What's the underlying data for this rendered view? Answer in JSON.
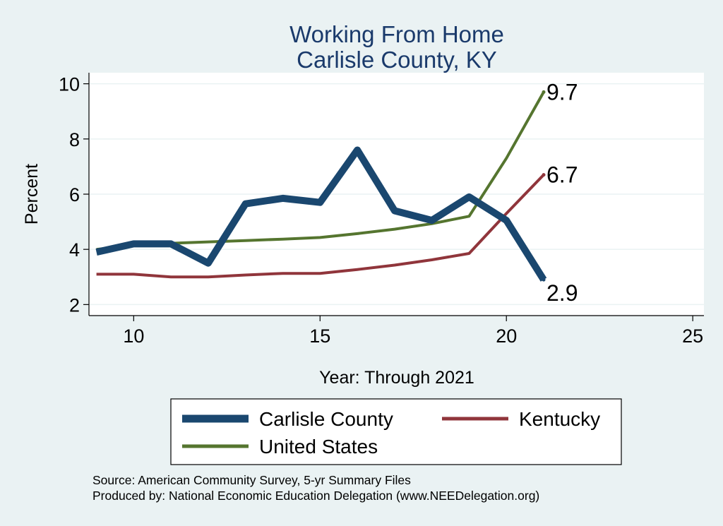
{
  "chart_data": {
    "type": "line",
    "title": [
      "Working From Home",
      "Carlisle County, KY"
    ],
    "xlabel": "Year: Through 2021",
    "ylabel": "Percent",
    "xlim": [
      8.8,
      25.3
    ],
    "ylim": [
      1.6,
      10.4
    ],
    "xticks": [
      10,
      15,
      20,
      25
    ],
    "yticks": [
      2,
      4,
      6,
      8,
      10
    ],
    "grid": true,
    "legend_position": "bottom",
    "x": [
      9,
      10,
      11,
      12,
      13,
      14,
      15,
      16,
      17,
      18,
      19,
      20,
      21
    ],
    "series": [
      {
        "name": "Carlisle County",
        "color": "#1a476f",
        "values": [
          3.9,
          4.2,
          4.2,
          3.5,
          5.65,
          5.85,
          5.7,
          7.6,
          5.4,
          5.05,
          5.9,
          5.05,
          2.9
        ],
        "end_label": "2.9"
      },
      {
        "name": "Kentucky",
        "color": "#90353b",
        "values": [
          3.1,
          3.1,
          3.0,
          3.0,
          3.07,
          3.13,
          3.13,
          3.27,
          3.43,
          3.62,
          3.85,
          5.3,
          6.7
        ],
        "end_label": "6.7"
      },
      {
        "name": "United States",
        "color": "#55752f",
        "values": [
          4.0,
          4.15,
          4.22,
          4.27,
          4.32,
          4.37,
          4.43,
          4.57,
          4.73,
          4.93,
          5.2,
          7.3,
          9.7
        ],
        "end_label": "9.7"
      }
    ],
    "notes": [
      "Source: American Community Survey, 5-yr Summary Files",
      "Produced by: National Economic Education Delegation (www.NEEDelegation.org)"
    ]
  }
}
